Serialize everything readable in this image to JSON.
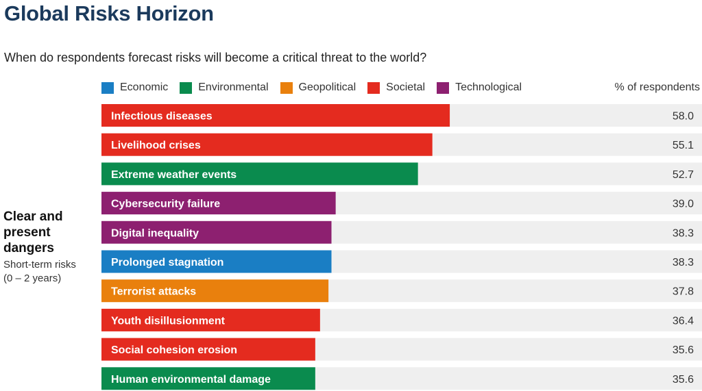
{
  "header": {
    "title": "Global Risks Horizon",
    "subtitle": "When do respondents forecast risks will become a critical threat to the world?"
  },
  "legend": [
    {
      "label": "Economic",
      "color": "#1a7ec4"
    },
    {
      "label": "Environmental",
      "color": "#0a8b4e"
    },
    {
      "label": "Geopolitical",
      "color": "#e9800d"
    },
    {
      "label": "Societal",
      "color": "#e42b1f"
    },
    {
      "label": "Technological",
      "color": "#8d2070"
    }
  ],
  "value_header": "% of respondents",
  "group": {
    "heading": "Clear and present dangers",
    "sub_line1": "Short-term risks",
    "sub_line2": "(0 – 2 years)"
  },
  "chart_data": {
    "type": "bar",
    "orientation": "horizontal",
    "xlim": [
      0,
      100
    ],
    "categories": [
      "Infectious diseases",
      "Livelihood crises",
      "Extreme weather events",
      "Cybersecurity failure",
      "Digital inequality",
      "Prolonged stagnation",
      "Terrorist attacks",
      "Youth disillusionment",
      "Social cohesion erosion",
      "Human environmental damage"
    ],
    "values": [
      58.0,
      55.1,
      52.7,
      39.0,
      38.3,
      38.3,
      37.8,
      36.4,
      35.6,
      35.6
    ],
    "value_labels": [
      "58.0",
      "55.1",
      "52.7",
      "39.0",
      "38.3",
      "38.3",
      "37.8",
      "36.4",
      "35.6",
      "35.6"
    ],
    "category_type": [
      "Societal",
      "Societal",
      "Environmental",
      "Technological",
      "Technological",
      "Economic",
      "Geopolitical",
      "Societal",
      "Societal",
      "Environmental"
    ],
    "track_color": "#efefef"
  }
}
